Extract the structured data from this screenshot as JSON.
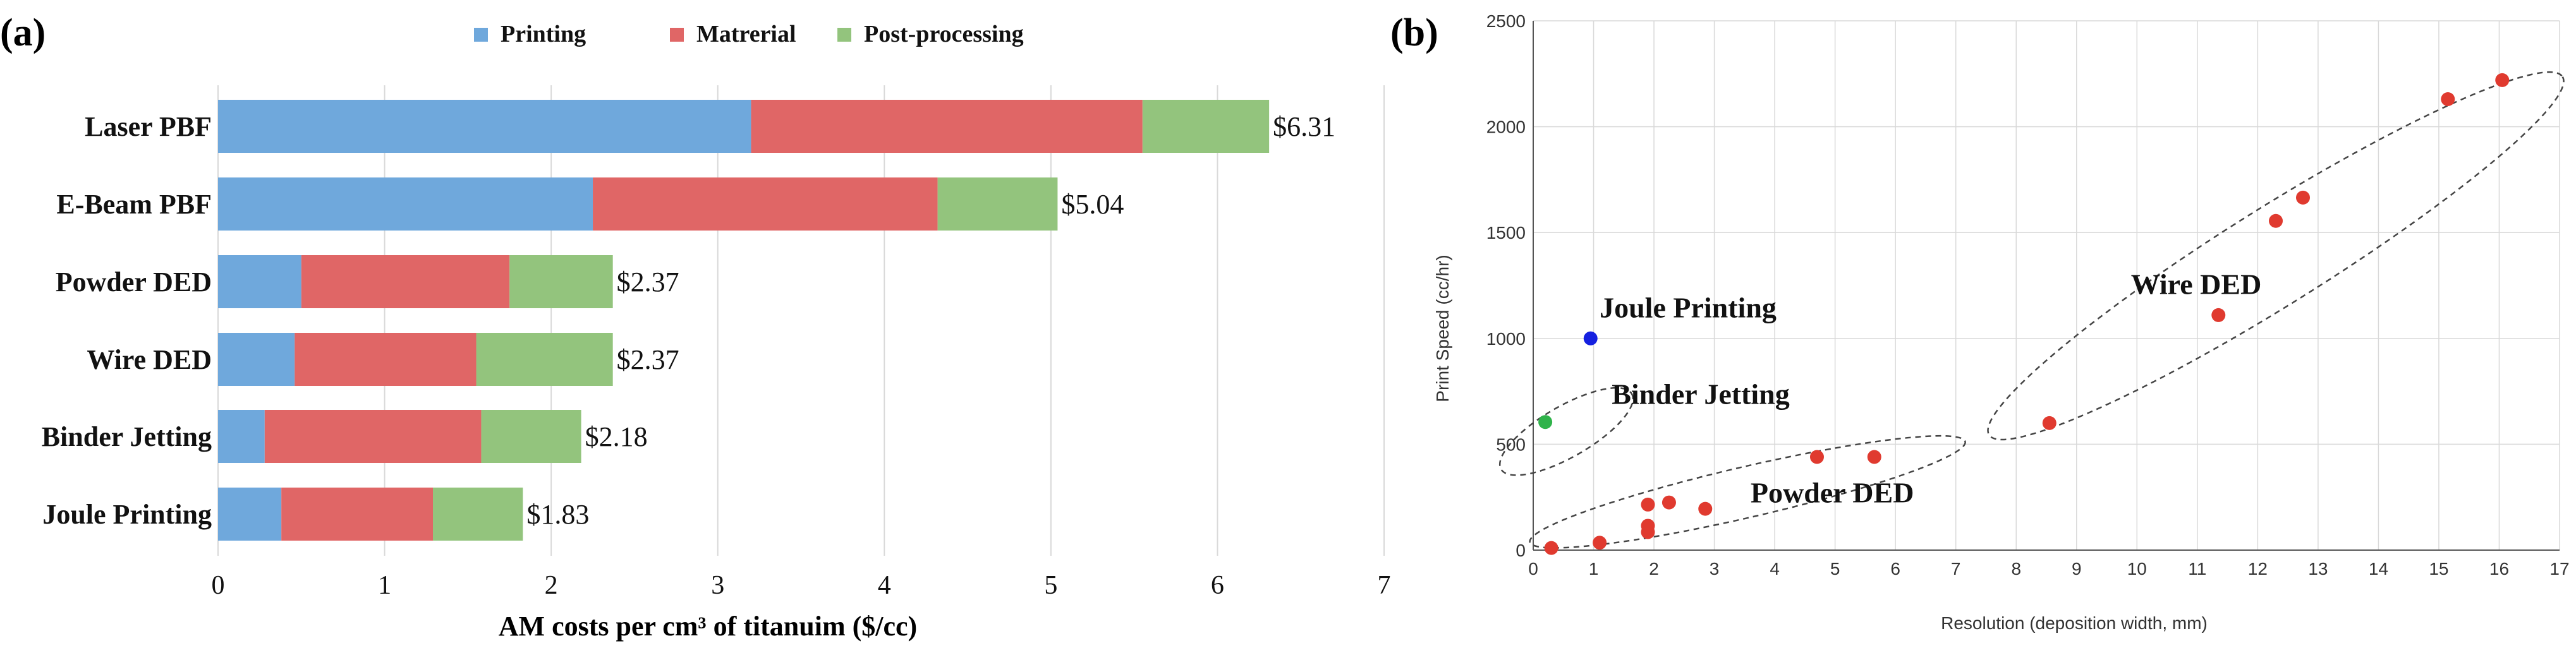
{
  "colors": {
    "printing": "#6fa8dc",
    "material": "#e06666",
    "post": "#93c47d",
    "scatter_red": "#e03a2f",
    "scatter_blue": "#1520e0",
    "scatter_green": "#2fb34a",
    "grid": "#d9d9d9",
    "text": "#111111"
  },
  "chart_data": [
    {
      "type": "bar",
      "orientation": "horizontal",
      "stacked": true,
      "panel_label": "(a)",
      "title": "",
      "xlabel": "AM costs per cm³ of titanuim ($/cc)",
      "ylabel": "",
      "xlim": [
        0,
        7
      ],
      "xticks": [
        0,
        1,
        2,
        3,
        4,
        5,
        6,
        7
      ],
      "grid": "vertical",
      "legend": "top",
      "categories": [
        "Laser PBF",
        "E-Beam PBF",
        "Powder DED",
        "Wire DED",
        "Binder Jetting",
        "Joule Printing"
      ],
      "series": [
        {
          "name": "Printing",
          "values": [
            3.2,
            2.25,
            0.5,
            0.46,
            0.28,
            0.38
          ]
        },
        {
          "name": "Matrerial",
          "values": [
            2.35,
            2.07,
            1.25,
            1.09,
            1.3,
            0.91
          ]
        },
        {
          "name": "Post-processing",
          "values": [
            0.76,
            0.72,
            0.62,
            0.82,
            0.6,
            0.54
          ]
        }
      ],
      "totals": [
        "$6.31",
        "$5.04",
        "$2.37",
        "$2.37",
        "$2.18",
        "$1.83"
      ]
    },
    {
      "type": "scatter",
      "panel_label": "(b)",
      "title": "",
      "xlabel": "Resolution (deposition width, mm)",
      "ylabel": "Print Speed (cc/hr)",
      "xlim": [
        0,
        17
      ],
      "ylim": [
        0,
        2500
      ],
      "xticks": [
        0,
        1,
        2,
        3,
        4,
        5,
        6,
        7,
        8,
        9,
        10,
        11,
        12,
        13,
        14,
        15,
        16,
        17
      ],
      "yticks": [
        0,
        500,
        1000,
        1500,
        2000,
        2500
      ],
      "grid": "both",
      "points": [
        {
          "x": 0.95,
          "y": 1000,
          "group": "Joule Printing",
          "color": "blue"
        },
        {
          "x": 0.2,
          "y": 605,
          "group": "Binder Jetting",
          "color": "green"
        },
        {
          "x": 0.3,
          "y": 10,
          "group": "Powder DED",
          "color": "red"
        },
        {
          "x": 1.1,
          "y": 35,
          "group": "Powder DED",
          "color": "red"
        },
        {
          "x": 1.9,
          "y": 85,
          "group": "Powder DED",
          "color": "red"
        },
        {
          "x": 1.9,
          "y": 115,
          "group": "Powder DED",
          "color": "red"
        },
        {
          "x": 1.9,
          "y": 215,
          "group": "Powder DED",
          "color": "red"
        },
        {
          "x": 2.25,
          "y": 225,
          "group": "Powder DED",
          "color": "red"
        },
        {
          "x": 2.85,
          "y": 195,
          "group": "Powder DED",
          "color": "red"
        },
        {
          "x": 4.7,
          "y": 440,
          "group": "Powder DED",
          "color": "red"
        },
        {
          "x": 5.65,
          "y": 440,
          "group": "Powder DED",
          "color": "red"
        },
        {
          "x": 8.55,
          "y": 600,
          "group": "Wire DED",
          "color": "red"
        },
        {
          "x": 11.35,
          "y": 1110,
          "group": "Wire DED",
          "color": "red"
        },
        {
          "x": 12.3,
          "y": 1555,
          "group": "Wire DED",
          "color": "red"
        },
        {
          "x": 12.75,
          "y": 1665,
          "group": "Wire DED",
          "color": "red"
        },
        {
          "x": 15.15,
          "y": 2130,
          "group": "Wire DED",
          "color": "red"
        },
        {
          "x": 16.05,
          "y": 2220,
          "group": "Wire DED",
          "color": "red"
        }
      ],
      "annotations": [
        {
          "text": "Joule Printing",
          "x": 1.1,
          "y": 1100
        },
        {
          "text": "Binder Jetting",
          "x": 1.3,
          "y": 690
        },
        {
          "text": "Powder DED",
          "x": 3.6,
          "y": 225
        },
        {
          "text": "Wire DED",
          "x": 9.9,
          "y": 1210
        }
      ],
      "ellipses": [
        {
          "group": "Binder Jetting",
          "cx": 0.55,
          "cy": 560,
          "rx": 1.25,
          "ry": 120,
          "angle": -30
        },
        {
          "group": "Powder DED",
          "cx": 3.55,
          "cy": 275,
          "rx": 3.7,
          "ry": 120,
          "angle": -13
        },
        {
          "group": "Wire DED",
          "cx": 12.3,
          "cy": 1390,
          "rx": 5.6,
          "ry": 230,
          "angle": -32
        }
      ]
    }
  ]
}
